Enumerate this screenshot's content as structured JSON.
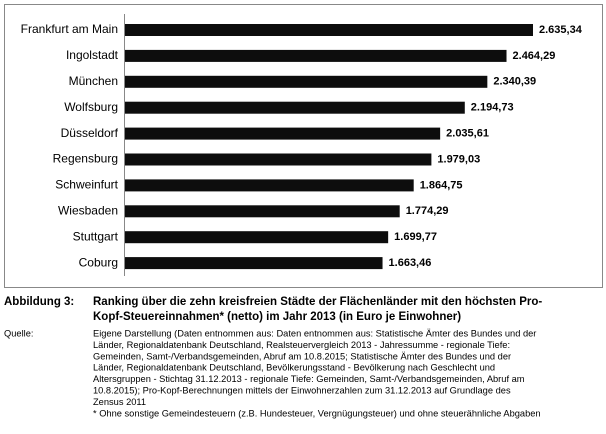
{
  "chart_data": {
    "type": "barh",
    "color": "#0d0d0d",
    "categories": [
      "Frankfurt am Main",
      "Ingolstadt",
      "München",
      "Wolfsburg",
      "Düsseldorf",
      "Regensburg",
      "Schweinfurt",
      "Wiesbaden",
      "Stuttgart",
      "Coburg"
    ],
    "values": [
      2635.34,
      2464.29,
      2340.39,
      2194.73,
      2035.61,
      1979.03,
      1864.75,
      1774.29,
      1699.77,
      1663.46
    ],
    "value_labels": [
      "2.635,34",
      "2.464,29",
      "2.340,39",
      "2.194,73",
      "2.035,61",
      "1.979,03",
      "1.864,75",
      "1.774,29",
      "1.699,77",
      "1.663,46"
    ]
  },
  "caption": {
    "label": "Abbildung 3:",
    "title_lines": [
      "Ranking über die zehn kreisfreien Städte der Flächenländer mit den höchsten Pro-",
      "Kopf-Steuereinnahmen* (netto) im Jahr 2013 (in Euro je Einwohner)"
    ]
  },
  "source": {
    "label": "Quelle:",
    "lines": [
      "Eigene Darstellung (Daten entnommen aus: Daten entnommen aus: Statistische Ämter des Bundes und der",
      "Länder, Regionaldatenbank Deutschland, Realsteuervergleich 2013 - Jahressumme - regionale Tiefe:",
      "Gemeinden, Samt-/Verbandsgemeinden, Abruf am 10.8.2015;  Statistische Ämter des Bundes und der",
      "Länder, Regionaldatenbank Deutschland, Bevölkerungsstand - Bevölkerung nach Geschlecht und",
      "Altersgruppen - Stichtag 31.12.2013 - regionale Tiefe: Gemeinden, Samt-/Verbandsgemeinden, Abruf am",
      "10.8.2015); Pro-Kopf-Berechnungen mittels der Einwohnerzahlen zum 31.12.2013 auf Grundlage des",
      "Zensus 2011",
      "* Ohne sonstige Gemeindesteuern (z.B. Hundesteuer, Vergnügungsteuer) und ohne steuerähnliche Abgaben"
    ]
  }
}
